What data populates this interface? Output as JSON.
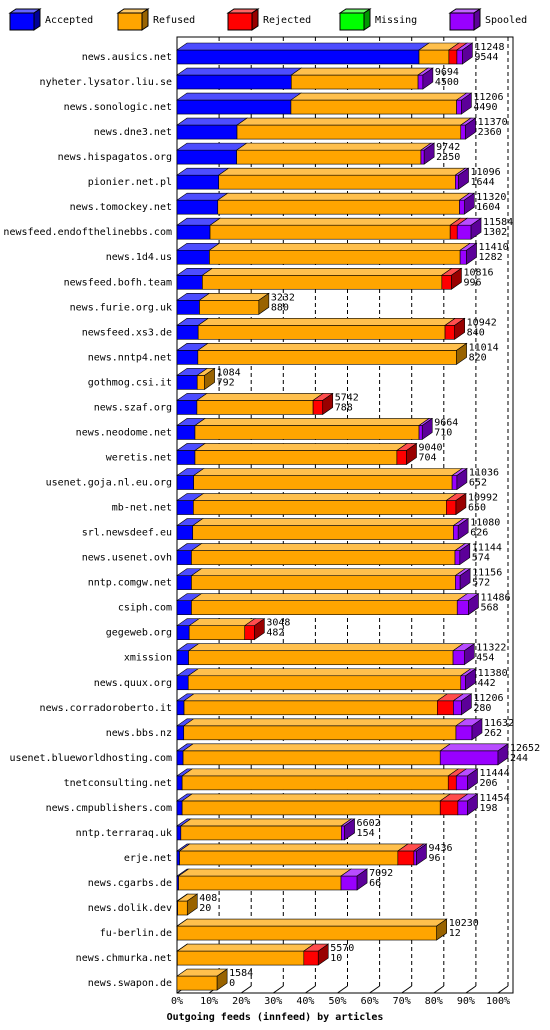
{
  "chart_data": {
    "type": "bar",
    "orientation": "horizontal",
    "stacked": true,
    "title": "Outgoing feeds (innfeed) by articles",
    "categories": [
      "news.ausics.net",
      "nyheter.lysator.liu.se",
      "news.sonologic.net",
      "news.dne3.net",
      "news.hispagatos.org",
      "pionier.net.pl",
      "news.tomockey.net",
      "newsfeed.endofthelinebbs.com",
      "news.1d4.us",
      "newsfeed.bofh.team",
      "news.furie.org.uk",
      "newsfeed.xs3.de",
      "news.nntp4.net",
      "gothmog.csi.it",
      "news.szaf.org",
      "news.neodome.net",
      "weretis.net",
      "usenet.goja.nl.eu.org",
      "mb-net.net",
      "srl.newsdeef.eu",
      "news.usenet.ovh",
      "nntp.comgw.net",
      "csiph.com",
      "gegeweb.org",
      "xmission",
      "news.quux.org",
      "news.corradoroberto.it",
      "news.bbs.nz",
      "usenet.blueworldhosting.com",
      "tnetconsulting.net",
      "news.cmpublishers.com",
      "nntp.terraraq.uk",
      "erje.net",
      "news.cgarbs.de",
      "news.dolik.dev",
      "fu-berlin.de",
      "news.chmurka.net",
      "news.swapon.de"
    ],
    "series": [
      {
        "name": "Accepted",
        "color": "#0000ff",
        "values": [
          75.4,
          35.6,
          35.5,
          18.7,
          18.6,
          13.0,
          12.7,
          10.3,
          10.1,
          7.9,
          7.0,
          6.6,
          6.5,
          6.3,
          6.2,
          5.6,
          5.6,
          5.2,
          5.1,
          4.9,
          4.5,
          4.5,
          4.5,
          3.8,
          3.6,
          3.5,
          2.2,
          2.1,
          1.9,
          1.6,
          1.6,
          1.2,
          0.8,
          0.5,
          0.2,
          0.1,
          0.1,
          0
        ]
      },
      {
        "name": "Refused",
        "color": "#ffa500",
        "values": [
          9.3,
          39.5,
          51.6,
          69.7,
          57.4,
          73.7,
          75.3,
          74.8,
          78.1,
          74.6,
          18.5,
          76.9,
          80.6,
          2.3,
          36.2,
          69.8,
          62.9,
          80.5,
          78.8,
          81.2,
          82.1,
          82.2,
          82.8,
          17.3,
          82.4,
          84.9,
          78.9,
          84.8,
          80.1,
          82.9,
          80.4,
          50.0,
          68.0,
          50.6,
          3.0,
          80.8,
          39.4,
          12.5
        ]
      },
      {
        "name": "Rejected",
        "color": "#ff0000",
        "values": [
          2.5,
          0,
          0,
          0,
          0,
          0,
          0,
          2.2,
          0,
          3.0,
          0,
          3.0,
          0,
          0,
          3.0,
          0,
          3.0,
          0,
          3.0,
          0,
          0,
          0,
          0,
          3.0,
          0,
          0,
          5.0,
          0,
          0,
          2.5,
          5.5,
          0,
          5.0,
          0,
          0,
          0,
          4.5,
          0
        ]
      },
      {
        "name": "Missing",
        "color": "#00ff00",
        "values": [
          0,
          0,
          0,
          0,
          0,
          0,
          0,
          0,
          0,
          0,
          0,
          0,
          0,
          0,
          0,
          0,
          0,
          0,
          0,
          0,
          0,
          0,
          0,
          0,
          0,
          0,
          0,
          0,
          0,
          0,
          0,
          0,
          0,
          0,
          0,
          0,
          0,
          0
        ]
      },
      {
        "name": "Spooled",
        "color": "#9900ff",
        "values": [
          1.7,
          1.5,
          1.5,
          1.5,
          1.0,
          1.0,
          1.5,
          4.3,
          2.0,
          0,
          0,
          0,
          0,
          0,
          0,
          1.0,
          0,
          1.5,
          0,
          1.5,
          1.5,
          1.5,
          3.5,
          0,
          3.5,
          1.5,
          2.5,
          5.0,
          18.0,
          3.5,
          3.0,
          1.0,
          0.8,
          5.0,
          0,
          0,
          0,
          0
        ]
      }
    ],
    "article_totals": [
      11248,
      9694,
      11206,
      11370,
      9742,
      11096,
      11320,
      11584,
      11410,
      10816,
      3232,
      10942,
      11014,
      1084,
      5742,
      9664,
      9040,
      11036,
      10992,
      11080,
      11144,
      11156,
      11486,
      3048,
      11322,
      11380,
      11206,
      11632,
      12652,
      11444,
      11454,
      6602,
      9436,
      7092,
      408,
      10230,
      5570,
      1584
    ],
    "accepted_articles": [
      9544,
      4500,
      4490,
      2360,
      2350,
      1644,
      1604,
      1302,
      1282,
      996,
      880,
      840,
      820,
      792,
      788,
      710,
      704,
      652,
      650,
      626,
      574,
      572,
      568,
      482,
      454,
      442,
      280,
      262,
      244,
      206,
      198,
      154,
      96,
      66,
      20,
      12,
      10,
      0
    ],
    "xlim": [
      0,
      100
    ],
    "xticks": [
      {
        "value": 0,
        "label": "0%"
      },
      {
        "value": 10,
        "label": "10%"
      },
      {
        "value": 20,
        "label": "20%"
      },
      {
        "value": 30,
        "label": "30%"
      },
      {
        "value": 40,
        "label": "40%"
      },
      {
        "value": 50,
        "label": "50%"
      },
      {
        "value": 60,
        "label": "60%"
      },
      {
        "value": 70,
        "label": "70%"
      },
      {
        "value": 80,
        "label": "80%"
      },
      {
        "value": 90,
        "label": "90%"
      },
      {
        "value": 100,
        "label": "100%"
      }
    ],
    "grid": true
  }
}
